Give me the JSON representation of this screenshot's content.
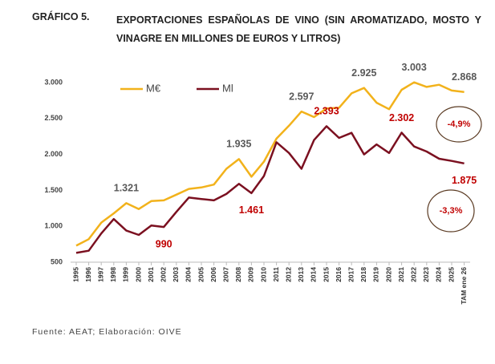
{
  "chart_data": {
    "type": "line",
    "label": "GRÁFICO 5.",
    "title": "EXPORTACIONES ESPAÑOLAS DE VINO (SIN AROMATIZADO, MOSTO Y VINAGRE EN MILLONES DE EUROS Y LITROS)",
    "source": "Fuente: AEAT; Elaboración: OIVE",
    "categories": [
      "1995",
      "1996",
      "1997",
      "1998",
      "1999",
      "2000",
      "2001",
      "2002",
      "2003",
      "2004",
      "2005",
      "2006",
      "2007",
      "2008",
      "2009",
      "2010",
      "2011",
      "2012",
      "2013",
      "2014",
      "2015",
      "2016",
      "2017",
      "2018",
      "2019",
      "2020",
      "2021",
      "2022",
      "2023",
      "2024",
      "2025",
      "TAM ene 26"
    ],
    "series": [
      {
        "name": "M€",
        "color": "#f2b21b",
        "label_color": "#595959",
        "values": [
          730,
          820,
          1050,
          1180,
          1321,
          1240,
          1350,
          1360,
          1440,
          1520,
          1540,
          1580,
          1800,
          1935,
          1690,
          1900,
          2220,
          2400,
          2597,
          2520,
          2640,
          2650,
          2850,
          2925,
          2720,
          2630,
          2900,
          3003,
          2940,
          2970,
          2890,
          2868
        ],
        "value_labels": [
          null,
          null,
          null,
          null,
          "1.321",
          null,
          null,
          null,
          null,
          null,
          null,
          null,
          null,
          "1.935",
          null,
          null,
          null,
          null,
          "2.597",
          null,
          null,
          null,
          null,
          "2.925",
          null,
          null,
          null,
          "3.003",
          null,
          null,
          null,
          "2.868"
        ]
      },
      {
        "name": "Ml",
        "color": "#7b1020",
        "label_color": "#c00000",
        "values": [
          630,
          660,
          900,
          1100,
          940,
          880,
          1010,
          990,
          1200,
          1400,
          1380,
          1360,
          1450,
          1590,
          1461,
          1700,
          2170,
          2020,
          1800,
          2200,
          2393,
          2230,
          2300,
          2000,
          2140,
          2020,
          2302,
          2110,
          2040,
          1940,
          1910,
          1875
        ],
        "value_labels": [
          null,
          null,
          null,
          null,
          null,
          null,
          null,
          "990",
          null,
          null,
          null,
          null,
          null,
          null,
          "1.461",
          null,
          null,
          null,
          null,
          null,
          "2.393",
          null,
          null,
          null,
          null,
          null,
          "2.302",
          null,
          null,
          null,
          null,
          "1.875"
        ]
      }
    ],
    "annotations": [
      "-4,9%",
      "-3,3%"
    ],
    "ylim": [
      500,
      3000
    ],
    "yticks": [
      {
        "value": 500,
        "label": "500"
      },
      {
        "value": 1000,
        "label": "1.000"
      },
      {
        "value": 1500,
        "label": "1.500"
      },
      {
        "value": 2000,
        "label": "2.000"
      },
      {
        "value": 2500,
        "label": "2.500"
      },
      {
        "value": 3000,
        "label": "3.000"
      }
    ],
    "grid": false
  }
}
